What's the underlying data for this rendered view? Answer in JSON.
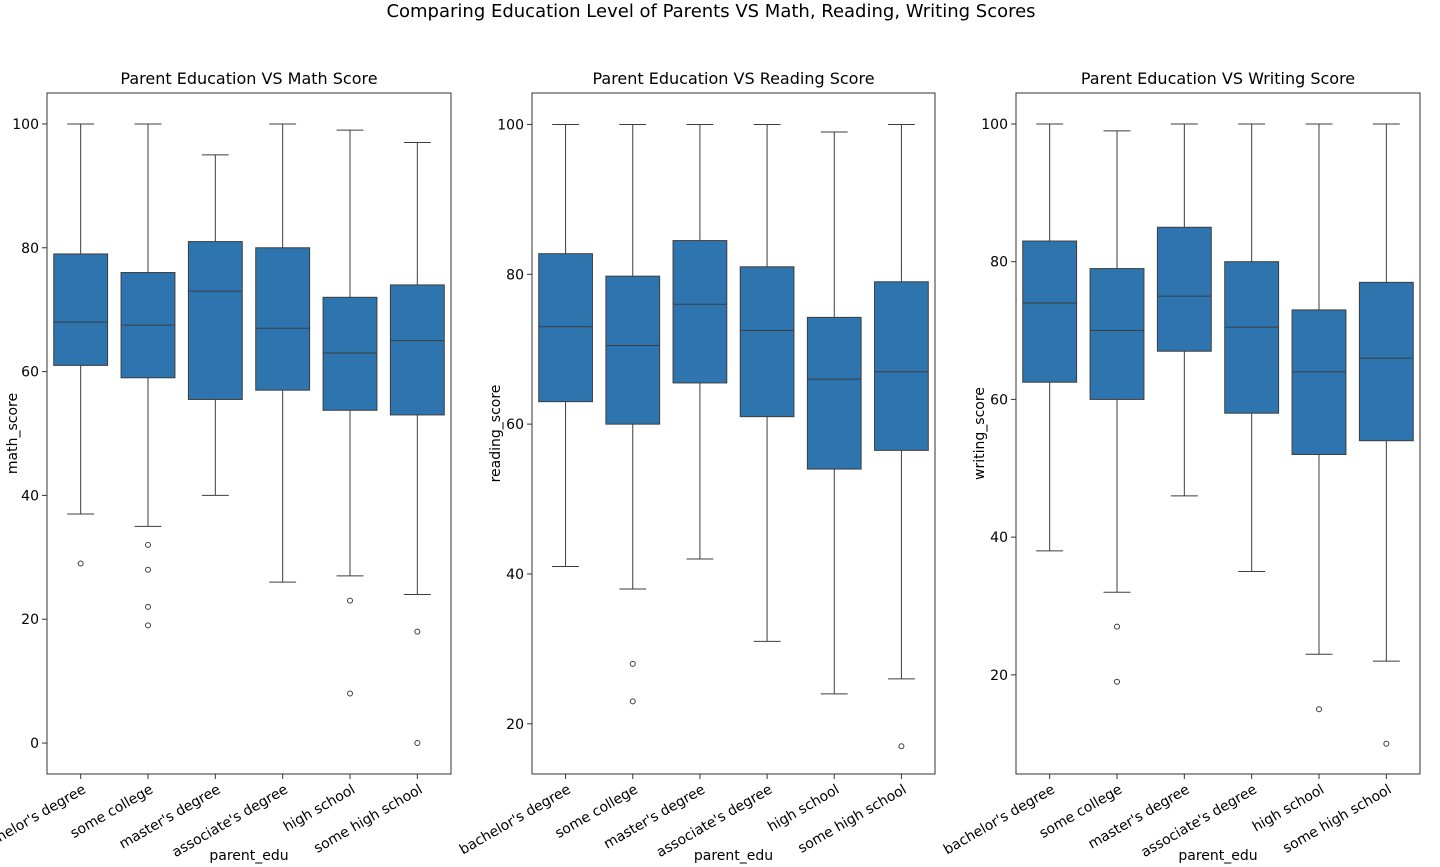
{
  "figure": {
    "suptitle": "Comparing Education Level of Parents VS Math, Reading, Writing Scores"
  },
  "colors": {
    "box_fill": "#2e75b0",
    "line": "#3d3d3d",
    "axis": "#333333"
  },
  "chart_data": [
    {
      "type": "boxplot",
      "title": "Parent Education VS Math Score",
      "xlabel": "parent_edu",
      "ylabel": "math_score",
      "ylim": [
        -5,
        105
      ],
      "yticks": [
        0,
        20,
        40,
        60,
        80,
        100
      ],
      "categories": [
        "bachelor's degree",
        "some college",
        "master's degree",
        "associate's degree",
        "high school",
        "some high school"
      ],
      "boxes": [
        {
          "whisker_low": 37,
          "q1": 61,
          "median": 68,
          "q3": 79,
          "whisker_high": 100,
          "outliers": [
            29
          ]
        },
        {
          "whisker_low": 35,
          "q1": 59,
          "median": 67.5,
          "q3": 76,
          "whisker_high": 100,
          "outliers": [
            32,
            28,
            22,
            19
          ]
        },
        {
          "whisker_low": 40,
          "q1": 55.5,
          "median": 73,
          "q3": 81,
          "whisker_high": 95,
          "outliers": []
        },
        {
          "whisker_low": 26,
          "q1": 57,
          "median": 67,
          "q3": 80,
          "whisker_high": 100,
          "outliers": []
        },
        {
          "whisker_low": 27,
          "q1": 53.75,
          "median": 63,
          "q3": 72,
          "whisker_high": 99,
          "outliers": [
            23,
            8
          ]
        },
        {
          "whisker_low": 24,
          "q1": 53,
          "median": 65,
          "q3": 74,
          "whisker_high": 97,
          "outliers": [
            18,
            0
          ]
        }
      ]
    },
    {
      "type": "boxplot",
      "title": "Parent Education VS Reading Score",
      "xlabel": "parent_edu",
      "ylabel": "reading_score",
      "ylim": [
        13.3,
        104.2
      ],
      "yticks": [
        20,
        40,
        60,
        80,
        100
      ],
      "categories": [
        "bachelor's degree",
        "some college",
        "master's degree",
        "associate's degree",
        "high school",
        "some high school"
      ],
      "boxes": [
        {
          "whisker_low": 41,
          "q1": 63,
          "median": 73,
          "q3": 82.75,
          "whisker_high": 100,
          "outliers": []
        },
        {
          "whisker_low": 38,
          "q1": 60,
          "median": 70.5,
          "q3": 79.75,
          "whisker_high": 100,
          "outliers": [
            28,
            23
          ]
        },
        {
          "whisker_low": 42,
          "q1": 65.5,
          "median": 76,
          "q3": 84.5,
          "whisker_high": 100,
          "outliers": []
        },
        {
          "whisker_low": 31,
          "q1": 61,
          "median": 72.5,
          "q3": 81,
          "whisker_high": 100,
          "outliers": []
        },
        {
          "whisker_low": 24,
          "q1": 54,
          "median": 66,
          "q3": 74.25,
          "whisker_high": 99,
          "outliers": []
        },
        {
          "whisker_low": 26,
          "q1": 56.5,
          "median": 67,
          "q3": 79,
          "whisker_high": 100,
          "outliers": [
            17
          ]
        }
      ]
    },
    {
      "type": "boxplot",
      "title": "Parent Education VS Writing Score",
      "xlabel": "parent_edu",
      "ylabel": "writing_score",
      "ylim": [
        5.6,
        104.5
      ],
      "yticks": [
        20,
        40,
        60,
        80,
        100
      ],
      "categories": [
        "bachelor's degree",
        "some college",
        "master's degree",
        "associate's degree",
        "high school",
        "some high school"
      ],
      "boxes": [
        {
          "whisker_low": 38,
          "q1": 62.5,
          "median": 74,
          "q3": 83,
          "whisker_high": 100,
          "outliers": []
        },
        {
          "whisker_low": 32,
          "q1": 60,
          "median": 70,
          "q3": 79,
          "whisker_high": 99,
          "outliers": [
            27,
            19
          ]
        },
        {
          "whisker_low": 46,
          "q1": 67,
          "median": 75,
          "q3": 85,
          "whisker_high": 100,
          "outliers": []
        },
        {
          "whisker_low": 35,
          "q1": 58,
          "median": 70.5,
          "q3": 80,
          "whisker_high": 100,
          "outliers": []
        },
        {
          "whisker_low": 23,
          "q1": 52,
          "median": 64,
          "q3": 73,
          "whisker_high": 100,
          "outliers": [
            15
          ]
        },
        {
          "whisker_low": 22,
          "q1": 54,
          "median": 66,
          "q3": 77,
          "whisker_high": 100,
          "outliers": [
            10
          ]
        }
      ]
    }
  ]
}
